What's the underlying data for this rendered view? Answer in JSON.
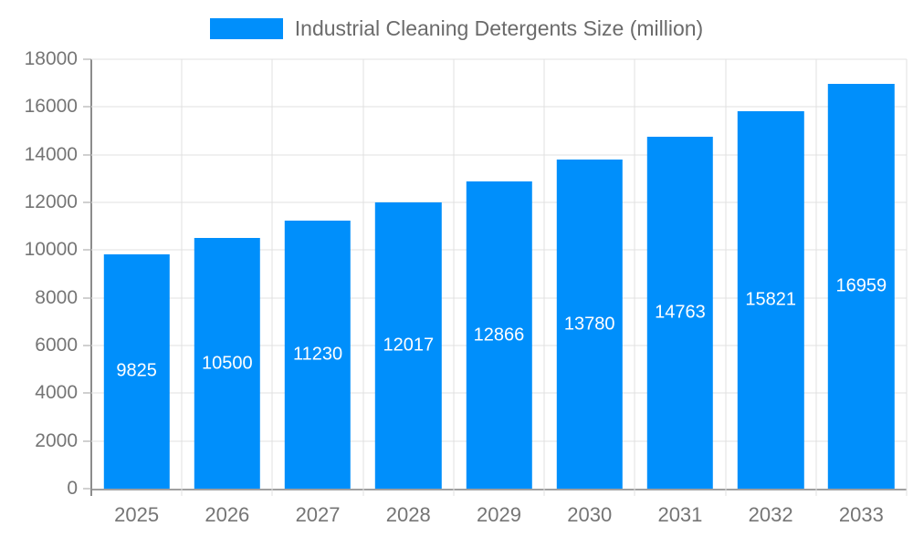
{
  "chart_data": {
    "type": "bar",
    "title": "Industrial Cleaning Detergents Size (million)",
    "legend": {
      "label": "Industrial Cleaning Detergents Size (million)",
      "position": "top"
    },
    "categories": [
      "2025",
      "2026",
      "2027",
      "2028",
      "2029",
      "2030",
      "2031",
      "2032",
      "2033"
    ],
    "series": [
      {
        "name": "Industrial Cleaning Detergents Size (million)",
        "values": [
          9825,
          10500,
          11230,
          12017,
          12866,
          13780,
          14763,
          15821,
          16959
        ]
      }
    ],
    "xlabel": "",
    "ylabel": "",
    "ylim": [
      0,
      18000
    ],
    "ytick_step": 2000,
    "ytick_labels": [
      "0",
      "2000",
      "4000",
      "6000",
      "8000",
      "10000",
      "12000",
      "14000",
      "16000",
      "18000"
    ],
    "grid": true,
    "colors": {
      "bar": "#008FFB",
      "grid": "#e0e0e0",
      "axis": "#a0a0a0",
      "y_axis_line": "#8c8c8c",
      "tick_label": "#757575",
      "legend_text": "#6b6b6b",
      "value_label": "#ffffff"
    }
  }
}
